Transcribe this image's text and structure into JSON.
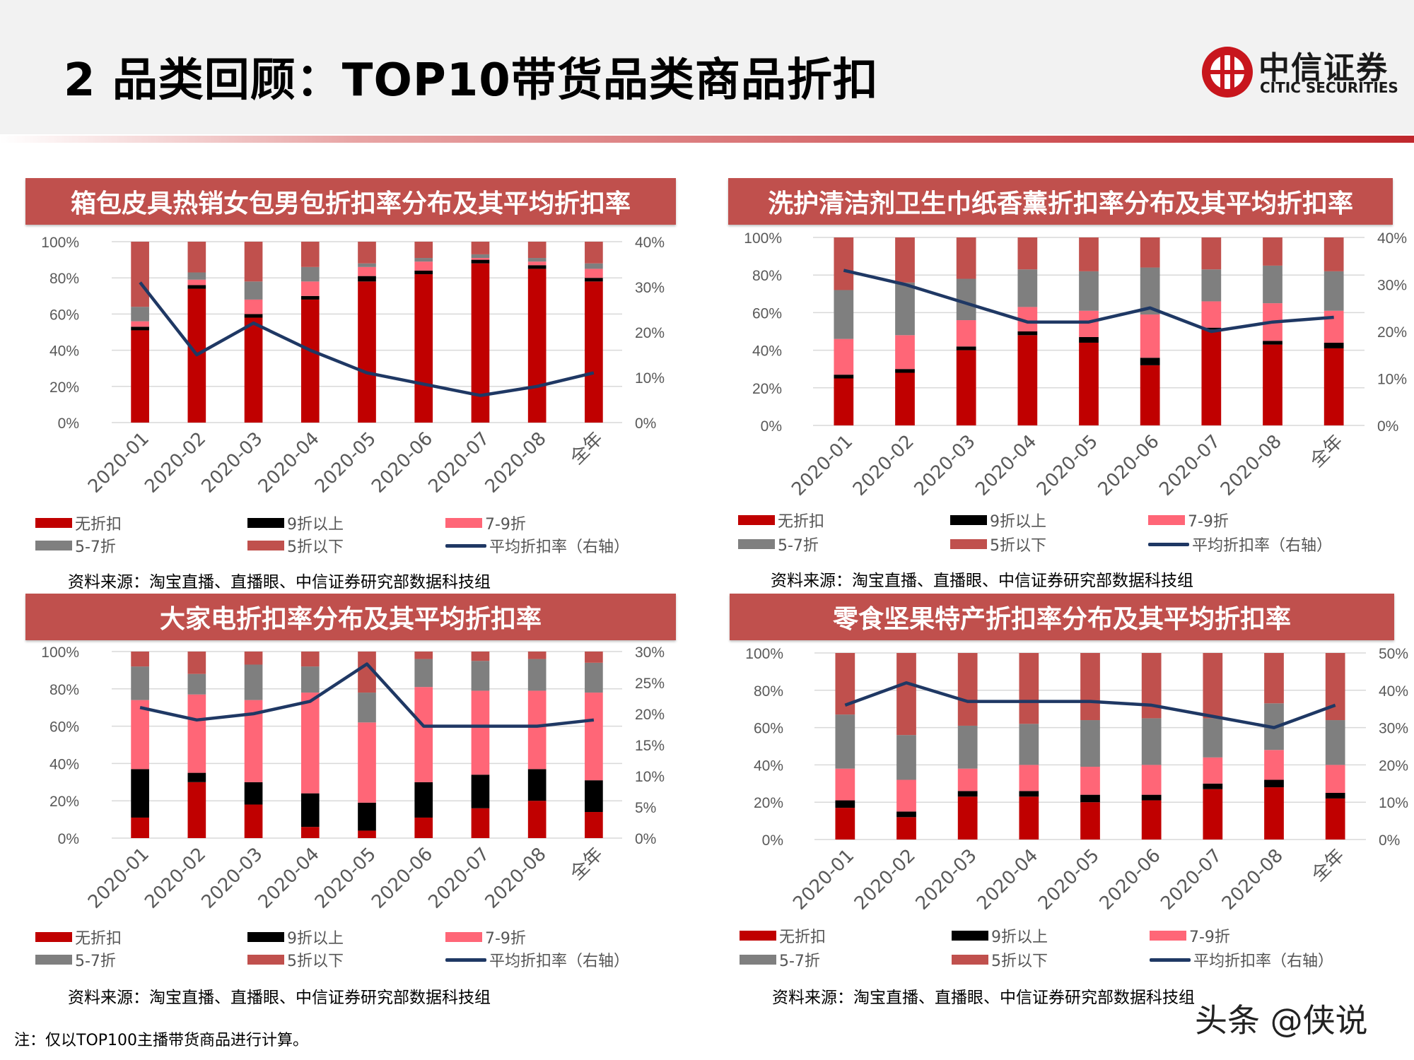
{
  "title": "2 品类回顾：TOP10带货品类商品折扣",
  "logo": {
    "cn": "中信证券",
    "en": "CITIC SECURITIES"
  },
  "note": "注：仅以TOP100主播带货商品进行计算。",
  "watermark": "头条 @侠说",
  "colors": {
    "无折扣": "#c00000",
    "9折以上": "#000000",
    "7-9折": "#ff6677",
    "5-7折": "#7f7f7f",
    "5折以下": "#c0504d",
    "平均折扣率（右轴）": "#1f3864"
  },
  "legend_labels": [
    "无折扣",
    "9折以上",
    "7-9折",
    "5-7折",
    "5折以下",
    "平均折扣率（右轴）"
  ],
  "chart_data": [
    {
      "type": "bar",
      "title": "箱包皮具热销女包男包折扣率分布及其平均折扣率",
      "categories": [
        "2020-01",
        "2020-02",
        "2020-03",
        "2020-04",
        "2020-05",
        "2020-06",
        "2020-07",
        "2020-08",
        "全年"
      ],
      "stacked": true,
      "y_left_ticks": [
        "0%",
        "20%",
        "40%",
        "60%",
        "80%",
        "100%"
      ],
      "y_right_ticks": [
        "0%",
        "10%",
        "20%",
        "30%",
        "40%"
      ],
      "ylim_left": [
        0,
        100
      ],
      "ylim_right": [
        0,
        40
      ],
      "series": [
        {
          "name": "无折扣",
          "values": [
            51,
            74,
            58,
            68,
            78,
            82,
            88,
            85,
            78
          ]
        },
        {
          "name": "9折以上",
          "values": [
            2,
            2,
            2,
            2,
            3,
            2,
            2,
            2,
            2
          ]
        },
        {
          "name": "7-9折",
          "values": [
            3,
            3,
            8,
            8,
            5,
            5,
            1,
            2,
            5
          ]
        },
        {
          "name": "5-7折",
          "values": [
            8,
            4,
            10,
            8,
            2,
            2,
            2,
            2,
            3
          ]
        },
        {
          "name": "5折以下",
          "values": [
            36,
            17,
            22,
            14,
            12,
            9,
            7,
            9,
            12
          ]
        }
      ],
      "line": {
        "name": "平均折扣率（右轴）",
        "values": [
          31,
          15,
          22,
          16,
          11,
          8.5,
          6,
          8,
          11
        ]
      },
      "source": "资料来源：淘宝直播、直播眼、中信证券研究部数据科技组"
    },
    {
      "type": "bar",
      "title": "洗护清洁剂卫生巾纸香薰折扣率分布及其平均折扣率",
      "categories": [
        "2020-01",
        "2020-02",
        "2020-03",
        "2020-04",
        "2020-05",
        "2020-06",
        "2020-07",
        "2020-08",
        "全年"
      ],
      "stacked": true,
      "y_left_ticks": [
        "0%",
        "20%",
        "40%",
        "60%",
        "80%",
        "100%"
      ],
      "y_right_ticks": [
        "0%",
        "10%",
        "20%",
        "30%",
        "40%"
      ],
      "ylim_left": [
        0,
        100
      ],
      "ylim_right": [
        0,
        40
      ],
      "series": [
        {
          "name": "无折扣",
          "values": [
            25,
            28,
            40,
            48,
            44,
            32,
            51,
            43,
            41
          ]
        },
        {
          "name": "9折以上",
          "values": [
            2,
            2,
            2,
            2,
            3,
            4,
            1,
            2,
            3
          ]
        },
        {
          "name": "7-9折",
          "values": [
            19,
            18,
            14,
            13,
            14,
            23,
            14,
            20,
            17
          ]
        },
        {
          "name": "5-7折",
          "values": [
            26,
            28,
            22,
            20,
            21,
            25,
            17,
            20,
            21
          ]
        },
        {
          "name": "5折以下",
          "values": [
            28,
            24,
            22,
            17,
            18,
            16,
            17,
            15,
            18
          ]
        }
      ],
      "line": {
        "name": "平均折扣率（右轴）",
        "values": [
          33,
          30,
          26,
          22,
          22,
          25,
          20,
          22,
          23
        ]
      },
      "source": "资料来源：淘宝直播、直播眼、中信证券研究部数据科技组"
    },
    {
      "type": "bar",
      "title": "大家电折扣率分布及其平均折扣率",
      "categories": [
        "2020-01",
        "2020-02",
        "2020-03",
        "2020-04",
        "2020-05",
        "2020-06",
        "2020-07",
        "2020-08",
        "全年"
      ],
      "stacked": true,
      "y_left_ticks": [
        "0%",
        "20%",
        "40%",
        "60%",
        "80%",
        "100%"
      ],
      "y_right_ticks": [
        "0%",
        "5%",
        "10%",
        "15%",
        "20%",
        "25%",
        "30%"
      ],
      "ylim_left": [
        0,
        100
      ],
      "ylim_right": [
        0,
        30
      ],
      "series": [
        {
          "name": "无折扣",
          "values": [
            11,
            30,
            18,
            6,
            4,
            11,
            16,
            20,
            14
          ]
        },
        {
          "name": "9折以上",
          "values": [
            26,
            5,
            12,
            18,
            15,
            19,
            18,
            17,
            17
          ]
        },
        {
          "name": "7-9折",
          "values": [
            37,
            42,
            44,
            54,
            43,
            51,
            45,
            42,
            47
          ]
        },
        {
          "name": "5-7折",
          "values": [
            18,
            11,
            19,
            14,
            16,
            15,
            16,
            17,
            16
          ]
        },
        {
          "name": "5折以下",
          "values": [
            8,
            12,
            7,
            8,
            22,
            4,
            5,
            4,
            6
          ]
        }
      ],
      "line": {
        "name": "平均折扣率（右轴）",
        "values": [
          21,
          19,
          20,
          22,
          28,
          18,
          18,
          18,
          19
        ]
      },
      "source": "资料来源：淘宝直播、直播眼、中信证券研究部数据科技组"
    },
    {
      "type": "bar",
      "title": "零食坚果特产折扣率分布及其平均折扣率",
      "categories": [
        "2020-01",
        "2020-02",
        "2020-03",
        "2020-04",
        "2020-05",
        "2020-06",
        "2020-07",
        "2020-08",
        "全年"
      ],
      "stacked": true,
      "y_left_ticks": [
        "0%",
        "20%",
        "40%",
        "60%",
        "80%",
        "100%"
      ],
      "y_right_ticks": [
        "0%",
        "10%",
        "20%",
        "30%",
        "40%",
        "50%"
      ],
      "ylim_left": [
        0,
        100
      ],
      "ylim_right": [
        0,
        50
      ],
      "series": [
        {
          "name": "无折扣",
          "values": [
            17,
            12,
            23,
            23,
            20,
            21,
            27,
            28,
            22
          ]
        },
        {
          "name": "9折以上",
          "values": [
            4,
            3,
            3,
            3,
            4,
            3,
            3,
            4,
            3
          ]
        },
        {
          "name": "7-9折",
          "values": [
            17,
            17,
            12,
            14,
            15,
            16,
            14,
            16,
            15
          ]
        },
        {
          "name": "5-7折",
          "values": [
            29,
            24,
            23,
            22,
            25,
            25,
            21,
            25,
            24
          ]
        },
        {
          "name": "5折以下",
          "values": [
            33,
            44,
            39,
            38,
            36,
            35,
            35,
            27,
            36
          ]
        }
      ],
      "line": {
        "name": "平均折扣率（右轴）",
        "values": [
          36,
          42,
          37,
          37,
          37,
          36,
          33,
          30,
          36
        ]
      },
      "source": "资料来源：淘宝直播、直播眼、中信证券研究部数据科技组"
    }
  ]
}
